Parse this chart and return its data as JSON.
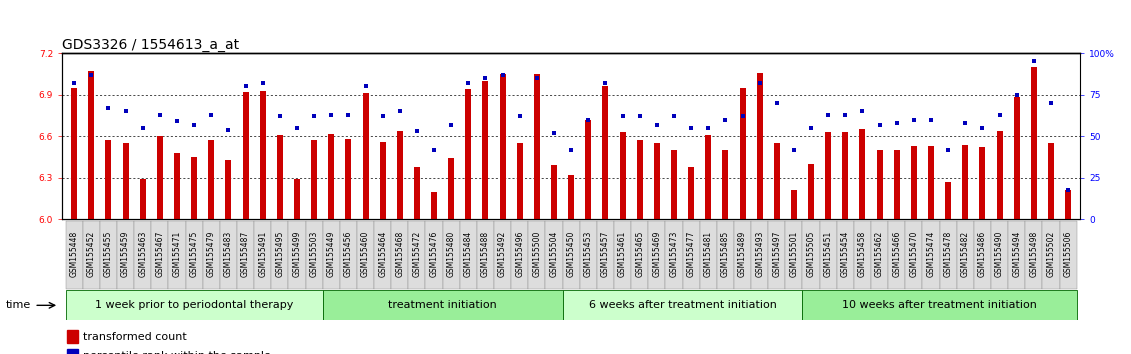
{
  "title": "GDS3326 / 1554613_a_at",
  "ylim_left": [
    6.0,
    7.2
  ],
  "ylim_right": [
    0,
    100
  ],
  "yticks_left": [
    6.0,
    6.3,
    6.6,
    6.9,
    7.2
  ],
  "yticks_right": [
    0,
    25,
    50,
    75,
    100
  ],
  "ytick_labels_right": [
    "0",
    "25",
    "50",
    "75",
    "100%"
  ],
  "samples": [
    "GSM155448",
    "GSM155452",
    "GSM155455",
    "GSM155459",
    "GSM155463",
    "GSM155467",
    "GSM155471",
    "GSM155475",
    "GSM155479",
    "GSM155483",
    "GSM155487",
    "GSM155491",
    "GSM155495",
    "GSM155499",
    "GSM155503",
    "GSM155449",
    "GSM155456",
    "GSM155460",
    "GSM155464",
    "GSM155468",
    "GSM155472",
    "GSM155476",
    "GSM155480",
    "GSM155484",
    "GSM155488",
    "GSM155492",
    "GSM155496",
    "GSM155500",
    "GSM155504",
    "GSM155450",
    "GSM155453",
    "GSM155457",
    "GSM155461",
    "GSM155465",
    "GSM155469",
    "GSM155473",
    "GSM155477",
    "GSM155481",
    "GSM155485",
    "GSM155489",
    "GSM155493",
    "GSM155497",
    "GSM155501",
    "GSM155505",
    "GSM155451",
    "GSM155454",
    "GSM155458",
    "GSM155462",
    "GSM155466",
    "GSM155470",
    "GSM155474",
    "GSM155478",
    "GSM155482",
    "GSM155486",
    "GSM155490",
    "GSM155494",
    "GSM155498",
    "GSM155502",
    "GSM155506"
  ],
  "bar_values": [
    6.95,
    7.07,
    6.57,
    6.55,
    6.29,
    6.6,
    6.48,
    6.45,
    6.57,
    6.43,
    6.92,
    6.93,
    6.61,
    6.29,
    6.57,
    6.62,
    6.58,
    6.91,
    6.56,
    6.64,
    6.38,
    6.2,
    6.44,
    6.94,
    7.0,
    7.05,
    6.55,
    7.05,
    6.39,
    6.32,
    6.72,
    6.96,
    6.63,
    6.57,
    6.55,
    6.5,
    6.38,
    6.61,
    6.5,
    6.95,
    7.06,
    6.55,
    6.21,
    6.4,
    6.63,
    6.63,
    6.65,
    6.5,
    6.5,
    6.53,
    6.53,
    6.27,
    6.54,
    6.52,
    6.64,
    6.88,
    7.1,
    6.55,
    6.21
  ],
  "dot_values": [
    82,
    87,
    67,
    65,
    55,
    63,
    59,
    57,
    63,
    54,
    80,
    82,
    62,
    55,
    62,
    63,
    63,
    80,
    62,
    65,
    53,
    42,
    57,
    82,
    85,
    87,
    62,
    85,
    52,
    42,
    60,
    82,
    62,
    62,
    57,
    62,
    55,
    55,
    60,
    62,
    82,
    70,
    42,
    55,
    63,
    63,
    65,
    57,
    58,
    60,
    60,
    42,
    58,
    55,
    63,
    75,
    95,
    70,
    18
  ],
  "groups": [
    {
      "label": "1 week prior to periodontal therapy",
      "start": 0,
      "end": 15,
      "color": "#ccffcc"
    },
    {
      "label": "treatment initiation",
      "start": 15,
      "end": 29,
      "color": "#99ee99"
    },
    {
      "label": "6 weeks after treatment initiation",
      "start": 29,
      "end": 43,
      "color": "#ccffcc"
    },
    {
      "label": "10 weeks after treatment initiation",
      "start": 43,
      "end": 59,
      "color": "#99ee99"
    }
  ],
  "bar_color": "#cc0000",
  "dot_color": "#0000bb",
  "bar_width": 0.35,
  "title_fontsize": 10,
  "tick_fontsize": 5.5,
  "group_fontsize": 8,
  "legend_fontsize": 8
}
